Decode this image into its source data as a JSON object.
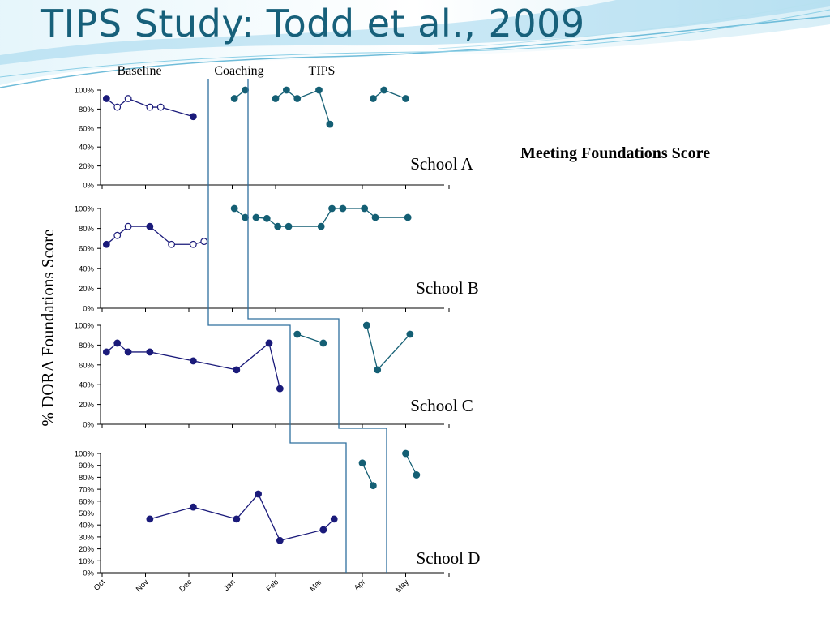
{
  "title": "TIPS Study: Todd et al., 2009",
  "side_caption": "Meeting Foundations Score",
  "colors": {
    "title": "#17607a",
    "baseline_series": "#1a1a7a",
    "tips_series": "#145f74",
    "phase_line": "#2e6f9e",
    "banner_light": "#bfe6f4",
    "banner_mid": "#7fcbe6"
  },
  "chart_data": {
    "type": "line",
    "phase_labels": [
      "Baseline",
      "Coaching",
      "TIPS"
    ],
    "ylabel": "% DORA Foundations Score",
    "x_ticks": [
      "Oct",
      "Nov",
      "Dec",
      "Jan",
      "Feb",
      "Mar",
      "Apr",
      "May"
    ],
    "grid": false,
    "note": "filled circle = full meeting measured; open circle = open-circle data point as shown",
    "panels": [
      {
        "school": "School A",
        "ylim": [
          0,
          100
        ],
        "y_ticks": [
          "0%",
          "20%",
          "40%",
          "60%",
          "80%",
          "100%"
        ],
        "segments": [
          {
            "phase": "baseline",
            "points": [
              {
                "x": 0.1,
                "y": 91,
                "open": false
              },
              {
                "x": 0.35,
                "y": 82,
                "open": true
              },
              {
                "x": 0.6,
                "y": 91,
                "open": true
              },
              {
                "x": 1.1,
                "y": 82,
                "open": true
              },
              {
                "x": 1.35,
                "y": 82,
                "open": true
              },
              {
                "x": 2.1,
                "y": 72,
                "open": false
              }
            ]
          },
          {
            "phase": "tips",
            "points": [
              {
                "x": 3.05,
                "y": 91
              },
              {
                "x": 3.3,
                "y": 100
              }
            ]
          },
          {
            "phase": "tips",
            "points": [
              {
                "x": 4.0,
                "y": 91
              },
              {
                "x": 4.25,
                "y": 100
              },
              {
                "x": 4.5,
                "y": 91
              },
              {
                "x": 5.0,
                "y": 100
              },
              {
                "x": 5.25,
                "y": 64
              }
            ]
          },
          {
            "phase": "tips",
            "points": [
              {
                "x": 6.25,
                "y": 91
              },
              {
                "x": 6.5,
                "y": 100
              },
              {
                "x": 7.0,
                "y": 91
              }
            ]
          }
        ]
      },
      {
        "school": "School B",
        "ylim": [
          0,
          100
        ],
        "y_ticks": [
          "0%",
          "20%",
          "40%",
          "60%",
          "80%",
          "100%"
        ],
        "segments": [
          {
            "phase": "baseline",
            "points": [
              {
                "x": 0.1,
                "y": 64,
                "open": false
              },
              {
                "x": 0.35,
                "y": 73,
                "open": true
              },
              {
                "x": 0.6,
                "y": 82,
                "open": true
              },
              {
                "x": 1.1,
                "y": 82,
                "open": false
              },
              {
                "x": 1.6,
                "y": 64,
                "open": true
              },
              {
                "x": 2.1,
                "y": 64,
                "open": true
              },
              {
                "x": 2.35,
                "y": 67,
                "open": true
              }
            ]
          },
          {
            "phase": "tips",
            "points": [
              {
                "x": 3.05,
                "y": 100
              },
              {
                "x": 3.3,
                "y": 91
              }
            ]
          },
          {
            "phase": "tips",
            "points": [
              {
                "x": 3.55,
                "y": 91
              },
              {
                "x": 3.8,
                "y": 90
              },
              {
                "x": 4.05,
                "y": 82
              },
              {
                "x": 4.3,
                "y": 82
              },
              {
                "x": 5.05,
                "y": 82
              },
              {
                "x": 5.3,
                "y": 100
              },
              {
                "x": 5.55,
                "y": 100
              },
              {
                "x": 6.05,
                "y": 100
              },
              {
                "x": 6.3,
                "y": 91
              },
              {
                "x": 7.05,
                "y": 91
              }
            ]
          }
        ]
      },
      {
        "school": "School C",
        "ylim": [
          0,
          100
        ],
        "y_ticks": [
          "0%",
          "20%",
          "40%",
          "60%",
          "80%",
          "100%"
        ],
        "segments": [
          {
            "phase": "baseline",
            "points": [
              {
                "x": 0.1,
                "y": 73
              },
              {
                "x": 0.35,
                "y": 82
              },
              {
                "x": 0.6,
                "y": 73
              },
              {
                "x": 1.1,
                "y": 73
              },
              {
                "x": 2.1,
                "y": 64
              },
              {
                "x": 3.1,
                "y": 55
              },
              {
                "x": 3.85,
                "y": 82
              },
              {
                "x": 4.1,
                "y": 36
              }
            ]
          },
          {
            "phase": "tips",
            "points": [
              {
                "x": 4.5,
                "y": 91
              },
              {
                "x": 5.1,
                "y": 82
              }
            ]
          },
          {
            "phase": "tips",
            "points": [
              {
                "x": 6.1,
                "y": 100
              },
              {
                "x": 6.35,
                "y": 55
              },
              {
                "x": 7.1,
                "y": 91
              }
            ]
          }
        ]
      },
      {
        "school": "School D",
        "ylim": [
          0,
          100
        ],
        "y_ticks": [
          "0%",
          "10%",
          "20%",
          "30%",
          "40%",
          "50%",
          "60%",
          "70%",
          "80%",
          "90%",
          "100%"
        ],
        "x_tick_labels_visible": true,
        "segments": [
          {
            "phase": "baseline",
            "points": [
              {
                "x": 1.1,
                "y": 45
              },
              {
                "x": 2.1,
                "y": 55
              },
              {
                "x": 3.1,
                "y": 45
              },
              {
                "x": 3.6,
                "y": 66
              },
              {
                "x": 4.1,
                "y": 27
              },
              {
                "x": 5.1,
                "y": 36
              },
              {
                "x": 5.35,
                "y": 45
              }
            ]
          },
          {
            "phase": "tips",
            "points": [
              {
                "x": 6.0,
                "y": 92
              },
              {
                "x": 6.25,
                "y": 73
              }
            ]
          },
          {
            "phase": "tips",
            "points": [
              {
                "x": 7.0,
                "y": 100
              },
              {
                "x": 7.25,
                "y": 82
              }
            ]
          }
        ]
      }
    ]
  }
}
